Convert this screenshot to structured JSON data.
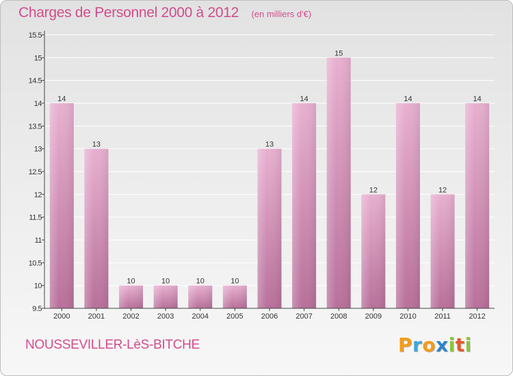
{
  "header": {
    "title": "Charges de Personnel 2000 à 2012",
    "subtitle": "(en milliers d'€)"
  },
  "footer": {
    "commune": "NOUSSEVILLER-LèS-BITCHE",
    "logo_letters": [
      "P",
      "r",
      "o",
      "x",
      "i",
      "t",
      "i"
    ],
    "logo_colors": [
      "#f29b1c",
      "#3aa7dc",
      "#f29b1c",
      "#2e86c9",
      "#8bc43f",
      "#e45a2c",
      "#8bc43f"
    ]
  },
  "colors": {
    "bar": "#d890b8",
    "bar_light": "#e8b0d0",
    "bar_dark": "#b8709a",
    "axis": "#444444",
    "grid": "#ffffff",
    "text": "#333333",
    "accent": "#d34c8d"
  },
  "chart_data": {
    "type": "bar",
    "categories": [
      "2000",
      "2001",
      "2002",
      "2003",
      "2004",
      "2005",
      "2006",
      "2007",
      "2008",
      "2009",
      "2010",
      "2011",
      "2012"
    ],
    "values": [
      14,
      13,
      10,
      10,
      10,
      10,
      13,
      14,
      15,
      12,
      14,
      12,
      14
    ],
    "ylim": [
      9.5,
      15.5
    ],
    "yticks": [
      9.5,
      10,
      10.5,
      11,
      11.5,
      12,
      12.5,
      13,
      13.5,
      14,
      14.5,
      15,
      15.5
    ],
    "ytick_labels": [
      "9.5",
      "10",
      "10.5",
      "11",
      "11.5",
      "12",
      "12.5",
      "13",
      "13.5",
      "14",
      "14.5",
      "15",
      "15.5"
    ],
    "data_labels": [
      "14",
      "13",
      "10",
      "10",
      "10",
      "10",
      "13",
      "14",
      "15",
      "12",
      "14",
      "12",
      "14"
    ],
    "grid": true
  }
}
